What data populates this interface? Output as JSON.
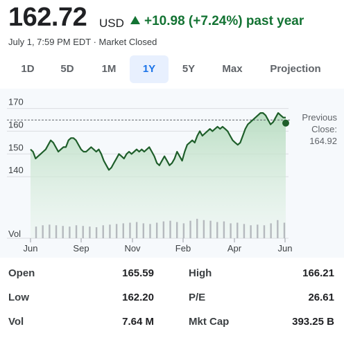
{
  "quote": {
    "price": "162.72",
    "currency": "USD",
    "change": "+10.98 (+7.24%)",
    "period": "past year",
    "timestamp": "July 1, 7:59 PM EDT · Market Closed",
    "accent_color": "#137333"
  },
  "tabs": [
    {
      "label": "1D",
      "selected": false
    },
    {
      "label": "5D",
      "selected": false
    },
    {
      "label": "1M",
      "selected": false
    },
    {
      "label": "1Y",
      "selected": true
    },
    {
      "label": "5Y",
      "selected": false
    },
    {
      "label": "Max",
      "selected": false
    },
    {
      "label": "Projection",
      "selected": false
    }
  ],
  "previous_close": {
    "label_line1": "Previous",
    "label_line2": "Close:",
    "value": "164.92"
  },
  "chart_data": {
    "type": "area",
    "x_tick_labels": [
      "Jun",
      "Sep",
      "Nov",
      "Feb",
      "Apr",
      "Jun"
    ],
    "y_tick_labels": [
      "170",
      "160",
      "150",
      "140"
    ],
    "y_ticks": [
      170,
      160,
      150,
      140
    ],
    "volume_label": "Vol",
    "ylim": [
      130,
      172
    ],
    "reference_line": 164.92,
    "line_color": "#1e5e2a",
    "fill_color": "#c9e6cf",
    "series": [
      {
        "values": [
          152,
          151,
          148,
          149,
          150,
          151,
          152,
          154,
          156,
          155,
          153,
          151,
          152,
          153,
          153,
          156,
          157,
          157,
          156,
          154,
          152,
          151,
          151,
          152,
          153,
          152,
          151,
          152,
          150,
          147,
          145,
          143,
          144,
          146,
          148,
          150,
          149,
          148,
          150,
          151,
          150,
          151,
          152,
          151,
          152,
          151,
          152,
          153,
          151,
          149,
          146,
          145,
          147,
          149,
          147,
          145,
          146,
          148,
          151,
          149,
          147,
          151,
          154,
          155,
          156,
          155,
          158,
          160,
          158,
          159,
          160,
          161,
          160,
          161,
          162,
          161,
          162,
          161,
          160,
          158,
          156,
          155,
          154,
          155,
          158,
          161,
          163,
          164,
          165,
          166,
          167,
          168,
          168,
          167,
          165,
          163,
          164,
          166,
          168,
          167,
          166,
          166
        ]
      }
    ],
    "volume": [
      18,
      20,
      21,
      20,
      19,
      18,
      20,
      19,
      18,
      17,
      20,
      21,
      22,
      23,
      24,
      25,
      23,
      22,
      24,
      26,
      27,
      25,
      23,
      27,
      30,
      28,
      27,
      25,
      26,
      23,
      24,
      22,
      20,
      21,
      20,
      23,
      28,
      24
    ]
  },
  "stats": [
    {
      "label": "Open",
      "value": "165.59",
      "label2": "High",
      "value2": "166.21"
    },
    {
      "label": "Low",
      "value": "162.20",
      "label2": "P/E",
      "value2": "26.61"
    },
    {
      "label": "Vol",
      "value": "7.64 M",
      "label2": "Mkt Cap",
      "value2": "393.25 B"
    }
  ]
}
